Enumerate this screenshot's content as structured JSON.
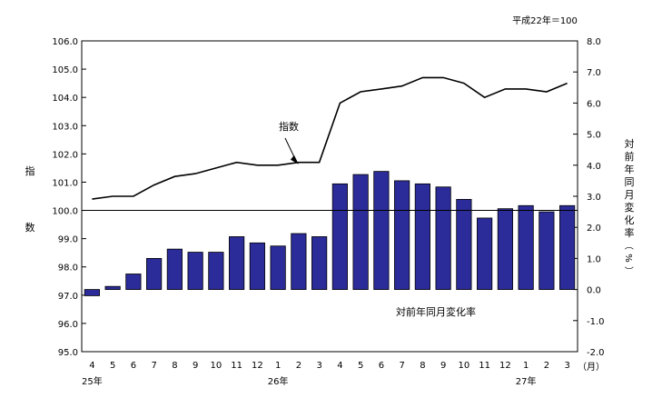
{
  "chart_data": {
    "type": "bar+line",
    "base_note": "平成22年＝100",
    "categories": [
      "4",
      "5",
      "6",
      "7",
      "8",
      "9",
      "10",
      "11",
      "12",
      "1",
      "2",
      "3",
      "4",
      "5",
      "6",
      "7",
      "8",
      "9",
      "10",
      "11",
      "12",
      "1",
      "2",
      "3"
    ],
    "x_unit": "（月）",
    "year_labels": [
      {
        "label": "25年",
        "index": 0
      },
      {
        "label": "26年",
        "index": 9
      },
      {
        "label": "27年",
        "index": 21
      }
    ],
    "y_left": {
      "label": "指数",
      "min": 95.0,
      "max": 106.0,
      "step": 1.0,
      "ticks": [
        "95.0",
        "96.0",
        "97.0",
        "98.0",
        "99.0",
        "100.0",
        "101.0",
        "102.0",
        "103.0",
        "104.0",
        "105.0",
        "106.0"
      ]
    },
    "y_right": {
      "label": "対前年同月変化率（%）",
      "min": -2.0,
      "max": 8.0,
      "step": 1.0,
      "ticks": [
        "-2.0",
        "-1.0",
        "0.0",
        "1.0",
        "2.0",
        "3.0",
        "4.0",
        "5.0",
        "6.0",
        "7.0",
        "8.0"
      ]
    },
    "reference_line_left": 100.0,
    "series": [
      {
        "name": "指数",
        "type": "line",
        "axis": "left",
        "color": "#000000",
        "values": [
          100.4,
          100.5,
          100.5,
          100.9,
          101.2,
          101.3,
          101.5,
          101.7,
          101.6,
          101.6,
          101.7,
          101.7,
          103.8,
          104.2,
          104.3,
          104.4,
          104.7,
          104.7,
          104.5,
          104.0,
          104.3,
          104.3,
          104.2,
          104.5
        ]
      },
      {
        "name": "対前年同月変化率",
        "type": "bar",
        "axis": "right",
        "color": "#2b2b99",
        "values": [
          -0.2,
          0.1,
          0.5,
          1.0,
          1.3,
          1.2,
          1.2,
          1.7,
          1.5,
          1.4,
          1.8,
          1.7,
          3.4,
          3.7,
          3.8,
          3.5,
          3.4,
          3.3,
          2.9,
          2.3,
          2.6,
          2.7,
          2.5,
          2.7
        ]
      }
    ],
    "annotations": [
      {
        "text": "指数",
        "target": "line"
      },
      {
        "text": "対前年同月変化率",
        "target": "bars"
      }
    ]
  }
}
